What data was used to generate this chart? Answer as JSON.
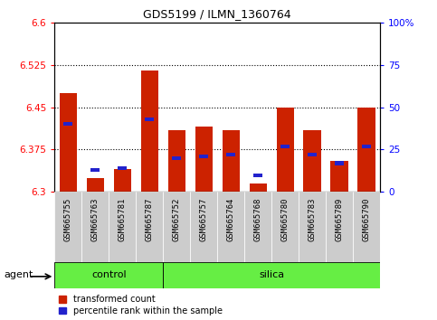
{
  "title": "GDS5199 / ILMN_1360764",
  "samples": [
    "GSM665755",
    "GSM665763",
    "GSM665781",
    "GSM665787",
    "GSM665752",
    "GSM665757",
    "GSM665764",
    "GSM665768",
    "GSM665780",
    "GSM665783",
    "GSM665789",
    "GSM665790"
  ],
  "red_values": [
    6.475,
    6.325,
    6.34,
    6.515,
    6.41,
    6.415,
    6.41,
    6.315,
    6.45,
    6.41,
    6.355,
    6.45
  ],
  "blue_values_pct": [
    40,
    13,
    14,
    43,
    20,
    21,
    22,
    10,
    27,
    22,
    17,
    27
  ],
  "ylim_left": [
    6.3,
    6.6
  ],
  "ylim_right": [
    0,
    100
  ],
  "yticks_left": [
    6.3,
    6.375,
    6.45,
    6.525,
    6.6
  ],
  "yticks_right": [
    0,
    25,
    50,
    75,
    100
  ],
  "ytick_labels_left": [
    "6.3",
    "6.375",
    "6.45",
    "6.525",
    "6.6"
  ],
  "ytick_labels_right": [
    "0",
    "25",
    "50",
    "75",
    "100%"
  ],
  "bar_bottom": 6.3,
  "red_color": "#cc2200",
  "blue_color": "#2222cc",
  "control_count": 4,
  "silica_count": 8,
  "control_label": "control",
  "silica_label": "silica",
  "agent_label": "agent",
  "legend_red": "transformed count",
  "legend_blue": "percentile rank within the sample",
  "bar_width": 0.65,
  "bg_color": "#ffffff",
  "tick_bg": "#cccccc",
  "green_bg": "#66ee44",
  "green_border": "#44aa22"
}
